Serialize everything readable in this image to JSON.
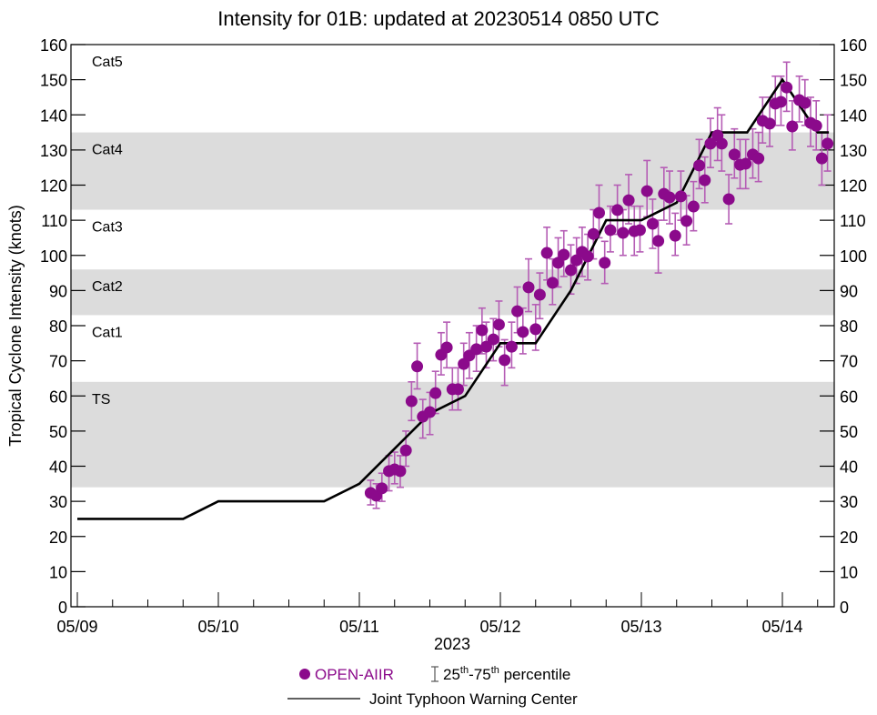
{
  "chart_data": {
    "type": "scatter",
    "title": "Intensity for 01B: updated at 20230514 0850 UTC",
    "ylabel": "Tropical Cyclone Intensity (knots)",
    "xlabel": "2023",
    "ylim": [
      0,
      160
    ],
    "xlim_days": [
      -0.05,
      5.33
    ],
    "x_unit": "days since 05/09 00 UTC",
    "yticks": [
      0,
      10,
      20,
      30,
      40,
      50,
      60,
      70,
      80,
      90,
      100,
      110,
      120,
      130,
      140,
      150,
      160
    ],
    "xticks": [
      {
        "day": 0,
        "label": "05/09"
      },
      {
        "day": 1,
        "label": "05/10"
      },
      {
        "day": 2,
        "label": "05/11"
      },
      {
        "day": 3,
        "label": "05/12"
      },
      {
        "day": 4,
        "label": "05/13"
      },
      {
        "day": 5,
        "label": "05/14"
      }
    ],
    "categories": [
      {
        "label": "TS",
        "min": 34,
        "max": 64,
        "shaded": true
      },
      {
        "label": "Cat1",
        "min": 64,
        "max": 83,
        "shaded": false
      },
      {
        "label": "Cat2",
        "min": 83,
        "max": 96,
        "shaded": true
      },
      {
        "label": "Cat3",
        "min": 96,
        "max": 113,
        "shaded": false
      },
      {
        "label": "Cat4",
        "min": 113,
        "max": 135,
        "shaded": true
      },
      {
        "label": "Cat5",
        "min": 135,
        "max": 160,
        "shaded": false
      }
    ],
    "legend": {
      "placement": "bottom",
      "open_aiir": "OPEN-AIIR",
      "percentile_base1": "25",
      "percentile_sup1": "th",
      "percentile_sep": "-75",
      "percentile_sup2": "th",
      "percentile_text": " percentile",
      "jtwc": "Joint Typhoon Warning Center"
    },
    "colors": {
      "openaiir": "#8b0a8b",
      "errorbar": "#b55db5",
      "jtwc": "#000000",
      "band": "#dcdcdc"
    },
    "jtwc_series": {
      "name": "Joint Typhoon Warning Center",
      "points": [
        [
          0.0,
          25
        ],
        [
          0.75,
          25
        ],
        [
          1.0,
          30
        ],
        [
          1.75,
          30
        ],
        [
          2.0,
          35
        ],
        [
          2.5,
          55
        ],
        [
          2.75,
          60
        ],
        [
          3.0,
          75
        ],
        [
          3.25,
          75
        ],
        [
          3.5,
          90
        ],
        [
          3.75,
          110
        ],
        [
          4.0,
          110
        ],
        [
          4.25,
          115
        ],
        [
          4.5,
          135
        ],
        [
          4.75,
          135
        ],
        [
          5.0,
          150
        ],
        [
          5.25,
          135
        ],
        [
          5.33,
          135
        ]
      ]
    },
    "openaiir_series": {
      "name": "OPEN-AIIR",
      "points": [
        [
          2.08,
          32.4,
          29,
          36
        ],
        [
          2.12,
          31.6,
          28,
          35
        ],
        [
          2.16,
          33.7,
          30,
          38
        ],
        [
          2.21,
          38.6,
          33,
          43
        ],
        [
          2.25,
          39.1,
          35,
          44
        ],
        [
          2.29,
          38.6,
          34,
          43
        ],
        [
          2.33,
          44.5,
          40,
          50
        ],
        [
          2.37,
          58.5,
          53,
          64
        ],
        [
          2.41,
          68.4,
          62,
          75
        ],
        [
          2.45,
          54.1,
          48,
          59
        ],
        [
          2.5,
          55.4,
          49,
          61
        ],
        [
          2.54,
          60.8,
          55,
          67
        ],
        [
          2.58,
          71.7,
          66,
          78
        ],
        [
          2.62,
          73.8,
          68,
          81
        ],
        [
          2.66,
          61.9,
          56,
          68
        ],
        [
          2.7,
          61.9,
          56,
          68
        ],
        [
          2.74,
          69.1,
          63,
          75
        ],
        [
          2.78,
          71.5,
          65,
          78
        ],
        [
          2.83,
          73.3,
          67,
          80
        ],
        [
          2.87,
          78.7,
          72,
          85
        ],
        [
          2.9,
          74.0,
          68,
          81
        ],
        [
          2.95,
          76.1,
          70,
          82
        ],
        [
          2.99,
          80.3,
          74,
          87
        ],
        [
          3.03,
          70.2,
          63,
          76
        ],
        [
          3.08,
          74.0,
          68,
          81
        ],
        [
          3.12,
          84.1,
          78,
          91
        ],
        [
          3.16,
          78.2,
          72,
          85
        ],
        [
          3.2,
          90.9,
          84,
          99
        ],
        [
          3.25,
          79.0,
          73,
          86
        ],
        [
          3.28,
          88.8,
          82,
          95
        ],
        [
          3.33,
          100.7,
          93,
          108
        ],
        [
          3.37,
          92.2,
          86,
          99
        ],
        [
          3.41,
          97.9,
          91,
          105
        ],
        [
          3.45,
          100.2,
          94,
          107
        ],
        [
          3.5,
          95.8,
          89,
          103
        ],
        [
          3.54,
          98.6,
          92,
          105
        ],
        [
          3.58,
          101.0,
          94,
          108
        ],
        [
          3.62,
          99.7,
          93,
          106
        ],
        [
          3.66,
          106.1,
          99,
          113
        ],
        [
          3.7,
          112.1,
          105,
          120
        ],
        [
          3.74,
          97.9,
          92,
          104
        ],
        [
          3.78,
          107.2,
          101,
          114
        ],
        [
          3.83,
          112.9,
          106,
          120
        ],
        [
          3.87,
          106.4,
          100,
          113
        ],
        [
          3.91,
          115.7,
          109,
          123
        ],
        [
          3.95,
          106.9,
          100,
          114
        ],
        [
          3.99,
          107.2,
          101,
          114
        ],
        [
          4.04,
          118.3,
          111,
          127
        ],
        [
          4.08,
          109.0,
          102,
          116
        ],
        [
          4.12,
          104.1,
          95,
          110
        ],
        [
          4.16,
          117.5,
          110,
          125
        ],
        [
          4.2,
          116.5,
          109,
          124
        ],
        [
          4.24,
          105.6,
          100,
          112
        ],
        [
          4.28,
          116.8,
          110,
          124
        ],
        [
          4.32,
          109.8,
          103,
          117
        ],
        [
          4.37,
          113.9,
          107,
          121
        ],
        [
          4.41,
          125.6,
          119,
          133
        ],
        [
          4.45,
          121.4,
          115,
          128
        ],
        [
          4.49,
          131.8,
          125,
          139
        ],
        [
          4.54,
          134.1,
          127,
          142
        ],
        [
          4.57,
          131.8,
          124,
          140
        ],
        [
          4.62,
          116.0,
          109,
          123
        ],
        [
          4.66,
          128.7,
          122,
          136
        ],
        [
          4.7,
          125.8,
          119,
          133
        ],
        [
          4.74,
          126.1,
          119,
          133
        ],
        [
          4.79,
          128.7,
          122,
          136
        ],
        [
          4.83,
          127.6,
          121,
          135
        ],
        [
          4.86,
          138.3,
          132,
          145
        ],
        [
          4.91,
          137.5,
          131,
          145
        ],
        [
          4.95,
          143.2,
          137,
          151
        ],
        [
          4.99,
          143.7,
          137,
          151
        ],
        [
          5.03,
          147.8,
          141,
          155
        ],
        [
          5.07,
          136.7,
          130,
          144
        ],
        [
          5.12,
          144.2,
          138,
          151
        ],
        [
          5.16,
          143.4,
          137,
          150
        ],
        [
          5.2,
          137.7,
          131,
          145
        ],
        [
          5.24,
          136.9,
          130,
          144
        ],
        [
          5.28,
          127.6,
          120,
          135
        ],
        [
          5.32,
          131.8,
          124,
          140
        ]
      ]
    }
  }
}
